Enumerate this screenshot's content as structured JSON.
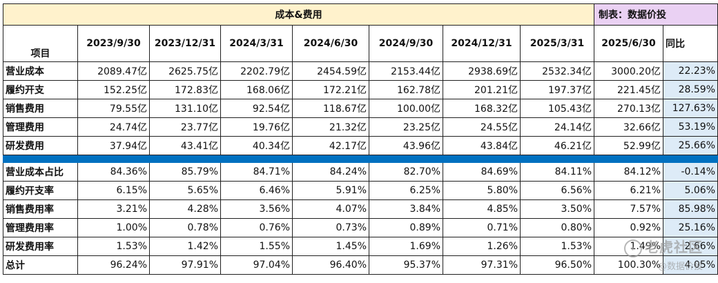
{
  "title": "成本&费用",
  "maker": "制表：数据价投",
  "header": {
    "item": "项目",
    "dates": [
      "2023/9/30",
      "2023/12/31",
      "2024/3/31",
      "2024/6/30",
      "2024/9/30",
      "2024/12/31",
      "2025/3/31",
      "2025/6/30"
    ],
    "yoy": "同比"
  },
  "cost_rows": [
    {
      "label": "营业成本",
      "values": [
        "2089.47亿",
        "2625.75亿",
        "2202.79亿",
        "2454.59亿",
        "2153.44亿",
        "2938.69亿",
        "2532.34亿",
        "3000.20亿"
      ],
      "yoy": "22.23%"
    },
    {
      "label": "履约开支",
      "values": [
        "152.25亿",
        "172.83亿",
        "168.06亿",
        "172.21亿",
        "162.78亿",
        "201.21亿",
        "197.37亿",
        "221.45亿"
      ],
      "yoy": "28.59%"
    },
    {
      "label": "销售费用",
      "values": [
        "79.55亿",
        "131.10亿",
        "92.54亿",
        "118.67亿",
        "100.00亿",
        "168.32亿",
        "105.43亿",
        "270.13亿"
      ],
      "yoy": "127.63%"
    },
    {
      "label": "管理费用",
      "values": [
        "24.74亿",
        "23.77亿",
        "19.76亿",
        "21.32亿",
        "23.25亿",
        "24.55亿",
        "24.14亿",
        "32.66亿"
      ],
      "yoy": "53.19%"
    },
    {
      "label": "研发费用",
      "values": [
        "37.94亿",
        "43.41亿",
        "40.34亿",
        "42.17亿",
        "43.96亿",
        "43.84亿",
        "46.21亿",
        "52.99亿"
      ],
      "yoy": "25.66%"
    }
  ],
  "ratio_rows": [
    {
      "label": "营业成本占比",
      "values": [
        "84.36%",
        "85.79%",
        "84.71%",
        "84.24%",
        "82.70%",
        "84.69%",
        "84.11%",
        "84.12%"
      ],
      "yoy": "-0.14%"
    },
    {
      "label": "履约开支率",
      "values": [
        "6.15%",
        "5.65%",
        "6.46%",
        "5.91%",
        "6.25%",
        "5.80%",
        "6.56%",
        "6.21%"
      ],
      "yoy": "5.06%"
    },
    {
      "label": "销售费用率",
      "values": [
        "3.21%",
        "4.28%",
        "3.56%",
        "4.07%",
        "3.84%",
        "4.85%",
        "3.50%",
        "7.57%"
      ],
      "yoy": "85.98%"
    },
    {
      "label": "管理费用率",
      "values": [
        "1.00%",
        "0.78%",
        "0.76%",
        "0.73%",
        "0.89%",
        "0.71%",
        "0.80%",
        "0.92%"
      ],
      "yoy": "25.16%"
    },
    {
      "label": "研发费用率",
      "values": [
        "1.53%",
        "1.42%",
        "1.55%",
        "1.45%",
        "1.69%",
        "1.26%",
        "1.53%",
        "1.49%"
      ],
      "yoy": "2.66%"
    },
    {
      "label": "总计",
      "values": [
        "96.24%",
        "97.91%",
        "97.04%",
        "96.40%",
        "95.37%",
        "97.31%",
        "96.50%",
        "100.30%"
      ],
      "yoy": "4.05%"
    }
  ],
  "watermark": {
    "main": "老虎社区",
    "sub": "@数据价投"
  }
}
